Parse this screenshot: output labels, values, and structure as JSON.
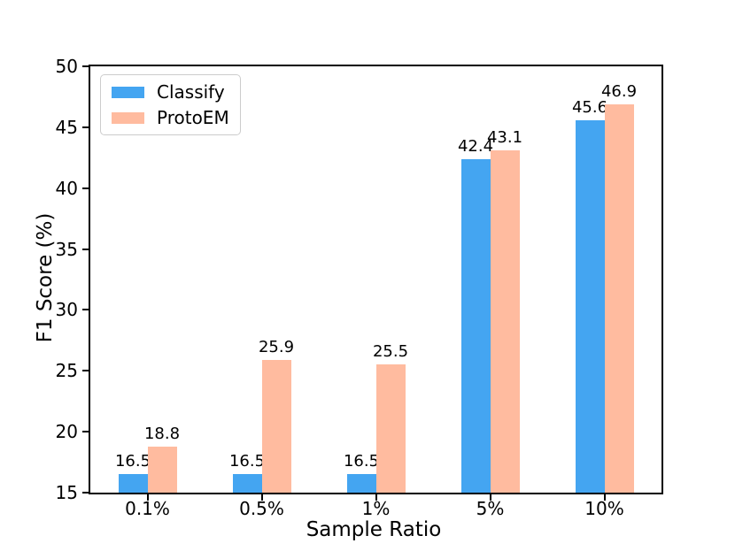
{
  "chart_data": {
    "type": "bar",
    "title": "",
    "xlabel": "Sample Ratio",
    "ylabel": "F1 Score (%)",
    "categories": [
      "0.1%",
      "0.5%",
      "1%",
      "5%",
      "10%"
    ],
    "series": [
      {
        "name": "Classify",
        "color": "#44A5F1",
        "values": [
          16.5,
          16.5,
          16.5,
          42.4,
          45.6
        ]
      },
      {
        "name": "ProtoEM",
        "color": "#FFBB9F",
        "values": [
          18.8,
          25.9,
          25.5,
          43.1,
          46.9
        ]
      }
    ],
    "ylim": [
      15,
      50
    ],
    "yticks": [
      15,
      20,
      25,
      30,
      35,
      40,
      45,
      50
    ],
    "bar_value_labels": true,
    "legend_position": "upper left",
    "grid": false,
    "axis_color": "#000000",
    "background_color": "#ffffff"
  }
}
